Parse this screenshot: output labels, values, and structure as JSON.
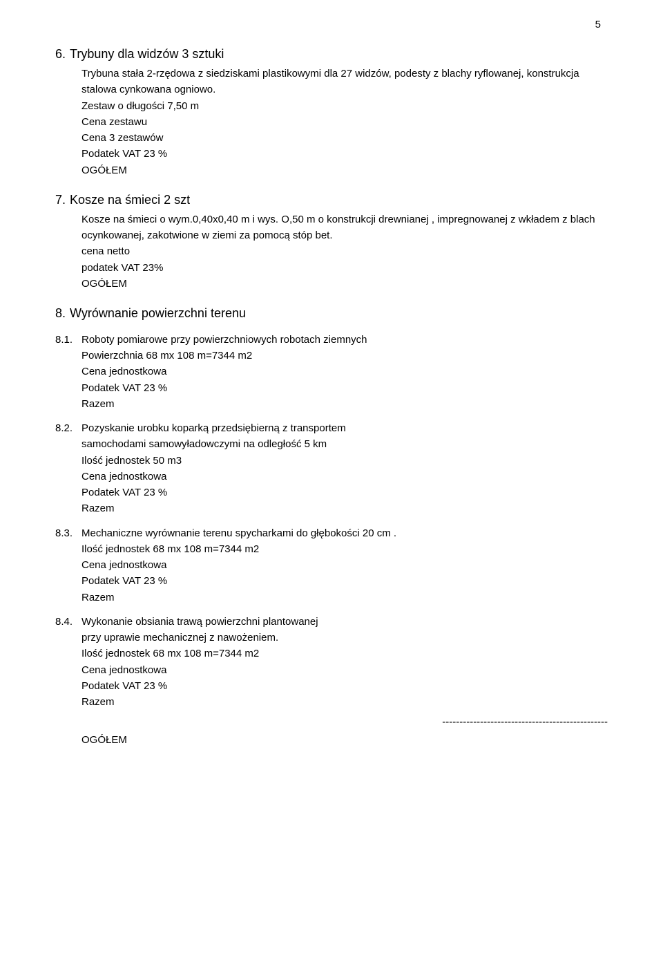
{
  "page_number": "5",
  "s6": {
    "num": "6.",
    "title": "Trybuny dla widzów 3 sztuki",
    "p1": "Trybuna stała 2-rzędowa z siedziskami plastikowymi dla 27 widzów, podesty z blachy ryflowanej, konstrukcja stalowa cynkowana ogniowo.",
    "p2": "Zestaw o długości 7,50 m",
    "l1": "Cena zestawu",
    "l2": "Cena 3 zestawów",
    "l3": "Podatek VAT 23 %",
    "l4": "OGÓŁEM"
  },
  "s7": {
    "num": "7.",
    "title": "Kosze na śmieci  2 szt",
    "p1": "Kosze na śmieci o wym.0,40x0,40 m i wys. O,50 m o konstrukcji drewnianej , impregnowanej z wkładem z blach ocynkowanej,  zakotwione w ziemi  za pomocą stóp bet.",
    "l1": "cena netto",
    "l2": "podatek VAT  23%",
    "l3": "OGÓŁEM"
  },
  "s8": {
    "num": "8.",
    "title": "Wyrównanie powierzchni terenu",
    "sub1": {
      "num": "8.1.",
      "title": "Roboty pomiarowe przy powierzchniowych robotach ziemnych",
      "l1": "Powierzchnia 68 mx 108 m=7344 m2",
      "l2": "Cena jednostkowa",
      "l3": "Podatek VAT  23 %",
      "l4": "Razem"
    },
    "sub2": {
      "num": "8.2.",
      "title": "Pozyskanie urobku koparką przedsiębierną z transportem",
      "p1": "samochodami samowyładowczymi na odległość 5 km",
      "l1": "Ilość jednostek  50 m3",
      "l2": "Cena jednostkowa",
      "l3": "Podatek VAT  23 %",
      "l4": "Razem"
    },
    "sub3": {
      "num": "8.3.",
      "title": "Mechaniczne wyrównanie terenu spycharkami do głębokości 20 cm .",
      "l1": "Ilość jednostek   68 mx 108 m=7344 m2",
      "l2": "Cena jednostkowa",
      "l3": "Podatek VAT  23 %",
      "l4": "Razem"
    },
    "sub4": {
      "num": "8.4.",
      "title": "Wykonanie obsiania trawą powierzchni plantowanej",
      "p1": "przy uprawie mechanicznej z nawożeniem.",
      "l1": "Ilość jednostek   68 mx 108 m=7344 m2",
      "l2": "Cena jednostkowa",
      "l3": "Podatek VAT  23 %",
      "l4": "Razem"
    },
    "dash": "------------------------------------------------",
    "ogolem": "OGÓŁEM"
  }
}
